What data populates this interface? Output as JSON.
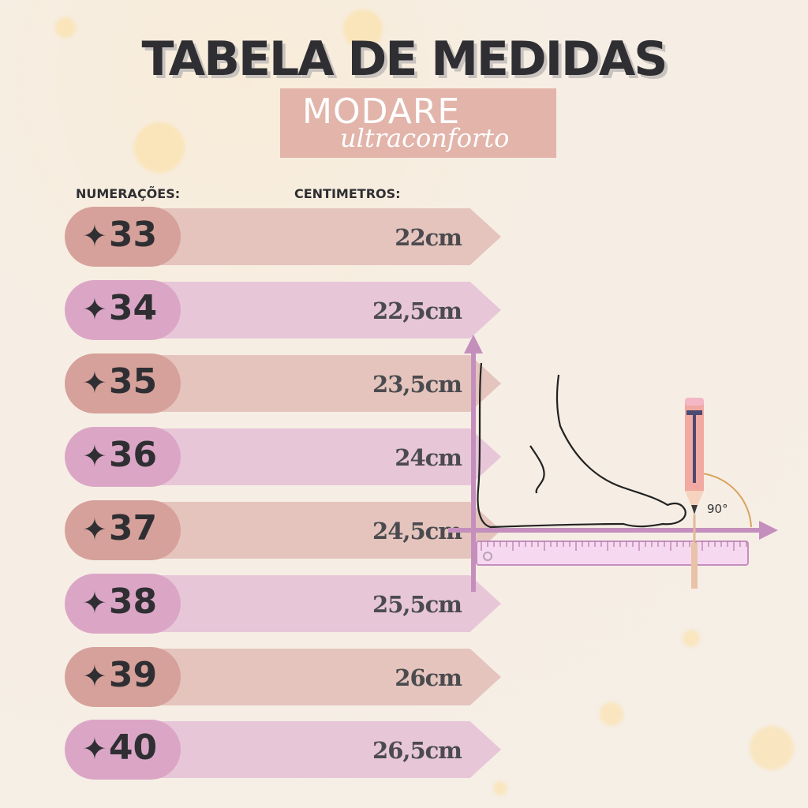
{
  "title": "TABELA DE MEDIDAS",
  "brand": {
    "name": "MODARE",
    "tagline": "ultraconforto"
  },
  "headers": {
    "sizes": "NUMERAÇÕES:",
    "lengths": "CENTIMETROS:"
  },
  "rows": [
    {
      "size": "33",
      "length": "22cm"
    },
    {
      "size": "34",
      "length": "22,5cm"
    },
    {
      "size": "35",
      "length": "23,5cm"
    },
    {
      "size": "36",
      "length": "24cm"
    },
    {
      "size": "37",
      "length": "24,5cm"
    },
    {
      "size": "38",
      "length": "25,5cm"
    },
    {
      "size": "39",
      "length": "26cm"
    },
    {
      "size": "40",
      "length": "26,5cm"
    }
  ],
  "illustration": {
    "angle_label": "90°"
  },
  "colors": {
    "pill_odd": "#d6a19a",
    "arrow_odd": "#e4c4bd",
    "pill_even": "#dba6c6",
    "arrow_even": "#e7c6d8",
    "axis": "#c58fbd",
    "title": "#2f2f33"
  },
  "icons": {
    "bullet": "four-point-star-icon"
  }
}
